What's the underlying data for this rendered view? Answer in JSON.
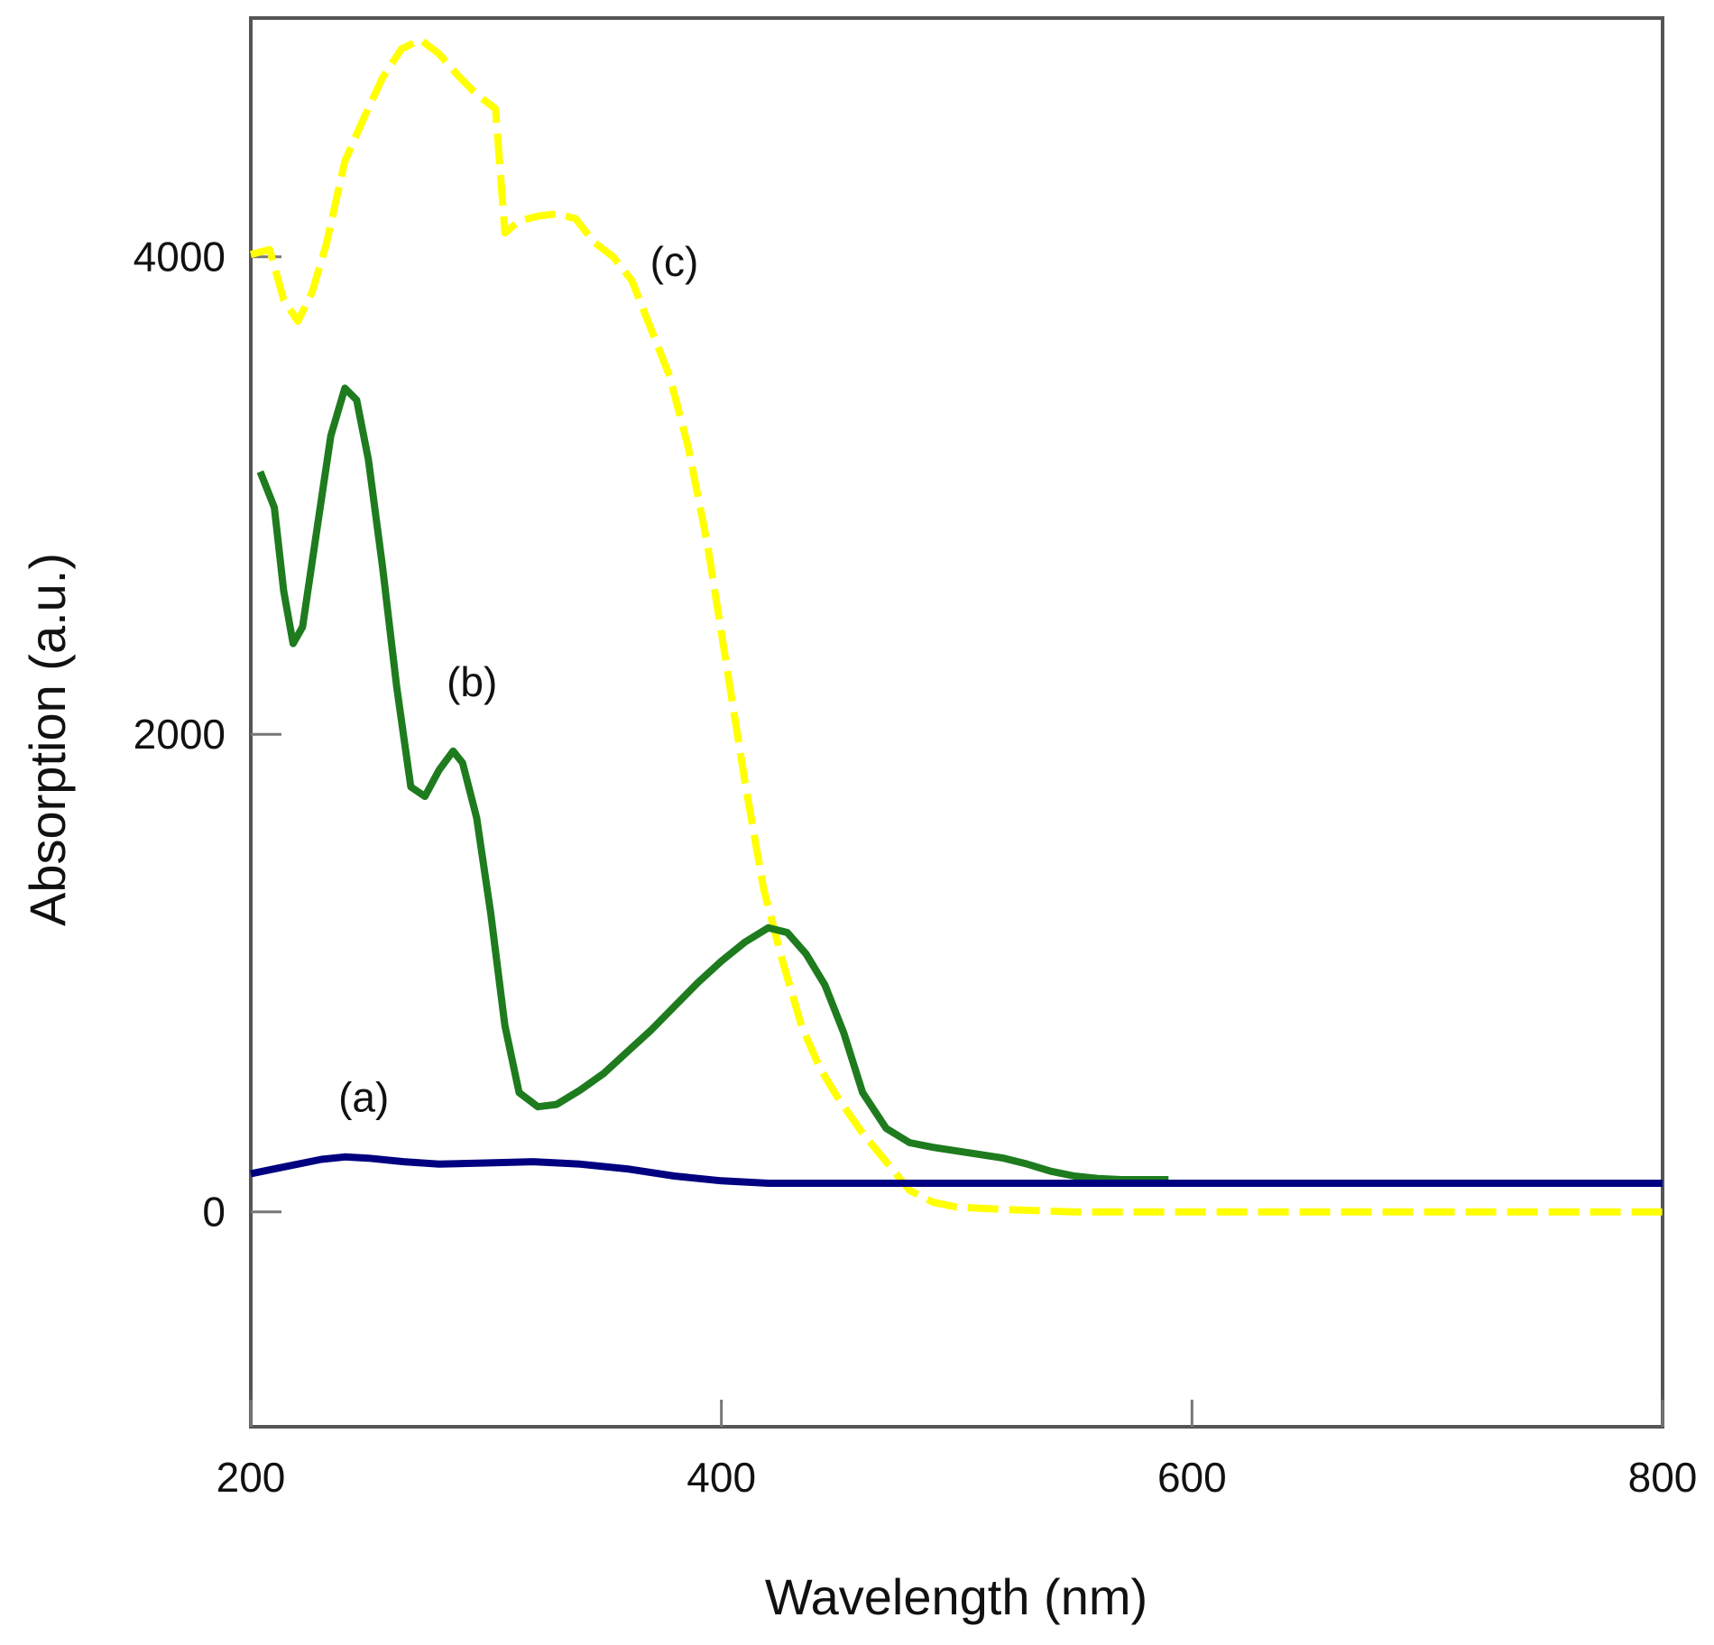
{
  "chart_data": {
    "type": "line",
    "title": "",
    "xlabel": "Wavelength (nm)",
    "ylabel": "Absorption (a.u.)",
    "xlim": [
      200,
      800
    ],
    "ylim": [
      -900,
      5000
    ],
    "grid": false,
    "legend": "none",
    "x_ticks": [
      {
        "value": 200,
        "label": "200"
      },
      {
        "value": 400,
        "label": "400"
      },
      {
        "value": 600,
        "label": "600"
      },
      {
        "value": 800,
        "label": "800"
      }
    ],
    "y_ticks": [
      {
        "value": 0,
        "label": "0"
      },
      {
        "value": 2000,
        "label": "2000"
      },
      {
        "value": 4000,
        "label": "4000"
      }
    ],
    "series": [
      {
        "name": "(a)",
        "color": "#000080",
        "style": "solid",
        "x": [
          200,
          215,
          230,
          240,
          250,
          265,
          280,
          300,
          320,
          340,
          360,
          380,
          400,
          420,
          440,
          460,
          480,
          500,
          550,
          600,
          650,
          700,
          750,
          800
        ],
        "y": [
          160,
          190,
          220,
          230,
          225,
          210,
          200,
          205,
          210,
          200,
          180,
          150,
          130,
          120,
          120,
          120,
          120,
          120,
          120,
          120,
          120,
          120,
          120,
          120
        ]
      },
      {
        "name": "(b)",
        "color": "#1e7b1e",
        "style": "solid",
        "x": [
          204,
          210,
          214,
          218,
          222,
          228,
          234,
          240,
          245,
          250,
          256,
          262,
          268,
          274,
          280,
          286,
          290,
          296,
          302,
          308,
          314,
          322,
          330,
          340,
          350,
          360,
          370,
          380,
          390,
          400,
          410,
          420,
          428,
          436,
          444,
          452,
          460,
          470,
          480,
          490,
          500,
          510,
          520,
          530,
          540,
          550,
          560,
          570,
          580,
          590
        ],
        "y": [
          3100,
          2950,
          2600,
          2380,
          2450,
          2850,
          3250,
          3450,
          3400,
          3150,
          2700,
          2200,
          1780,
          1740,
          1850,
          1930,
          1880,
          1650,
          1250,
          780,
          500,
          440,
          450,
          510,
          580,
          670,
          760,
          860,
          960,
          1050,
          1130,
          1190,
          1170,
          1080,
          950,
          750,
          500,
          350,
          290,
          270,
          255,
          240,
          225,
          200,
          170,
          150,
          140,
          135,
          135,
          135
        ]
      },
      {
        "name": "(c)",
        "color": "#ffff00",
        "style": "dashed",
        "x": [
          200,
          208,
          214,
          220,
          226,
          232,
          240,
          248,
          256,
          264,
          272,
          280,
          288,
          296,
          304,
          308,
          314,
          322,
          330,
          338,
          346,
          354,
          362,
          370,
          378,
          386,
          394,
          402,
          410,
          418,
          426,
          434,
          442,
          450,
          460,
          470,
          480,
          490,
          500,
          520,
          550,
          600,
          650,
          700,
          750,
          800
        ],
        "y": [
          4010,
          4030,
          3820,
          3730,
          3850,
          4050,
          4400,
          4580,
          4750,
          4870,
          4910,
          4850,
          4760,
          4680,
          4620,
          4100,
          4150,
          4170,
          4180,
          4160,
          4060,
          4000,
          3900,
          3700,
          3500,
          3200,
          2800,
          2300,
          1800,
          1350,
          1050,
          780,
          600,
          470,
          330,
          210,
          90,
          40,
          20,
          10,
          0,
          0,
          0,
          0,
          0,
          0
        ]
      }
    ],
    "annotations": [
      {
        "text": "(a)",
        "x": 248,
        "y": 420
      },
      {
        "text": "(b)",
        "x": 294,
        "y": 2160
      },
      {
        "text": "(c)",
        "x": 380,
        "y": 3920
      }
    ]
  }
}
